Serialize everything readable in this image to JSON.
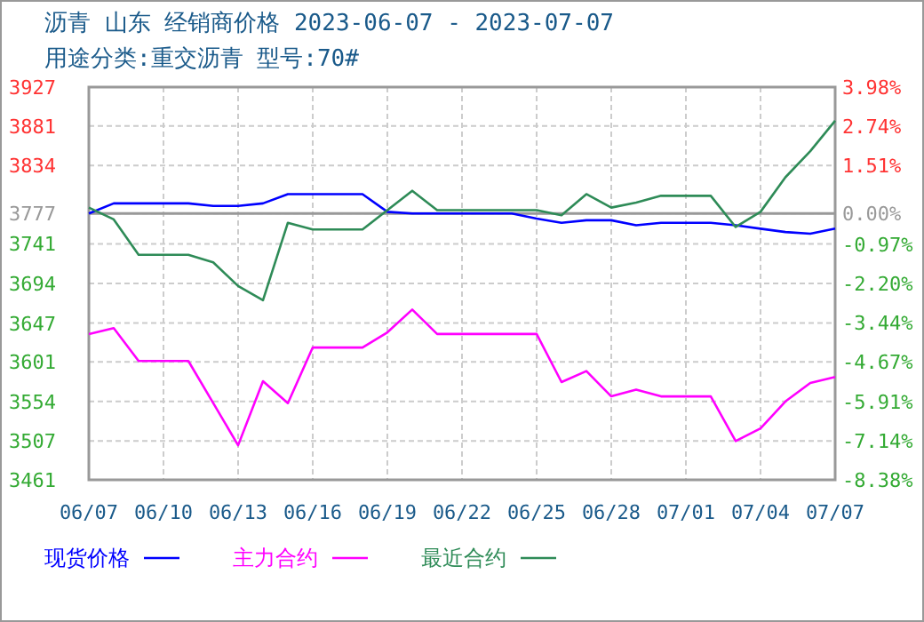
{
  "chart_data": {
    "type": "line",
    "title": "沥青 山东 经销商价格 2023-06-07 - 2023-07-07",
    "subtitle": "用途分类:重交沥青 型号:70#",
    "x": [
      "2023-06-07",
      "2023-06-08",
      "2023-06-09",
      "2023-06-10",
      "2023-06-11",
      "2023-06-12",
      "2023-06-13",
      "2023-06-14",
      "2023-06-15",
      "2023-06-16",
      "2023-06-17",
      "2023-06-18",
      "2023-06-19",
      "2023-06-20",
      "2023-06-21",
      "2023-06-22",
      "2023-06-23",
      "2023-06-24",
      "2023-06-25",
      "2023-06-26",
      "2023-06-27",
      "2023-06-28",
      "2023-06-29",
      "2023-06-30",
      "2023-07-01",
      "2023-07-02",
      "2023-07-03",
      "2023-07-04",
      "2023-07-05",
      "2023-07-06",
      "2023-07-07"
    ],
    "series": [
      {
        "name": "现货价格",
        "color": "#0000ff",
        "values": [
          3777,
          3789,
          3789,
          3789,
          3789,
          3786,
          3786,
          3789,
          3800,
          3800,
          3800,
          3800,
          3779,
          3777,
          3777,
          3777,
          3777,
          3777,
          3771,
          3766,
          3769,
          3769,
          3763,
          3766,
          3766,
          3766,
          3763,
          3759,
          3755,
          3753,
          3759
        ]
      },
      {
        "name": "主力合约",
        "color": "#ff00ff",
        "values": [
          3634,
          3641,
          3602,
          3602,
          3602,
          3552,
          3502,
          3578,
          3552,
          3618,
          3618,
          3618,
          3636,
          3663,
          3634,
          3634,
          3634,
          3634,
          3634,
          3577,
          3590,
          3560,
          3568,
          3560,
          3560,
          3560,
          3507,
          3522,
          3554,
          3576,
          3583
        ]
      },
      {
        "name": "最近合约",
        "color": "#2e8b57",
        "values": [
          3784,
          3770,
          3728,
          3728,
          3728,
          3719,
          3691,
          3674,
          3766,
          3758,
          3758,
          3758,
          3781,
          3804,
          3781,
          3781,
          3781,
          3781,
          3781,
          3775,
          3800,
          3784,
          3790,
          3798,
          3798,
          3798,
          3761,
          3779,
          3820,
          3851,
          3887
        ]
      }
    ],
    "xlim": [
      "2023-06-07",
      "2023-07-07"
    ],
    "xticks": [
      {
        "value": "2023-06-07",
        "label": "06/07"
      },
      {
        "value": "2023-06-10",
        "label": "06/10"
      },
      {
        "value": "2023-06-13",
        "label": "06/13"
      },
      {
        "value": "2023-06-16",
        "label": "06/16"
      },
      {
        "value": "2023-06-19",
        "label": "06/19"
      },
      {
        "value": "2023-06-22",
        "label": "06/22"
      },
      {
        "value": "2023-06-25",
        "label": "06/25"
      },
      {
        "value": "2023-06-28",
        "label": "06/28"
      },
      {
        "value": "2023-07-01",
        "label": "07/01"
      },
      {
        "value": "2023-07-04",
        "label": "07/04"
      },
      {
        "value": "2023-07-07",
        "label": "07/07"
      }
    ],
    "ylim": [
      3461,
      3927
    ],
    "yticks": [
      3461,
      3507,
      3554,
      3601,
      3647,
      3694,
      3741,
      3777,
      3834,
      3881,
      3927
    ],
    "y2lim": [
      -8.38,
      3.98
    ],
    "y2ticks": [
      {
        "value": -8.38,
        "label": "-8.38%"
      },
      {
        "value": -7.14,
        "label": "-7.14%"
      },
      {
        "value": -5.91,
        "label": "-5.91%"
      },
      {
        "value": -4.67,
        "label": "-4.67%"
      },
      {
        "value": -3.44,
        "label": "-3.44%"
      },
      {
        "value": -2.2,
        "label": "-2.20%"
      },
      {
        "value": -0.97,
        "label": "-0.97%"
      },
      {
        "value": 0,
        "label": "0.00%"
      },
      {
        "value": 1.51,
        "label": "1.51%"
      },
      {
        "value": 2.74,
        "label": "2.74%"
      },
      {
        "value": 3.98,
        "label": "3.98%"
      }
    ],
    "ref_lines": [
      {
        "axis": "y",
        "value": 3777,
        "color": "#999999"
      }
    ],
    "grid": true,
    "legend": "bottom",
    "line_style": "solid"
  }
}
